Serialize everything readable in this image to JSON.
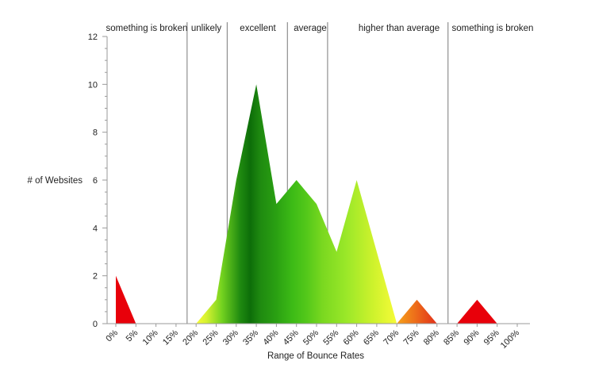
{
  "chart_data": {
    "type": "area",
    "title": "",
    "xlabel": "Range of Bounce Rates",
    "ylabel": "# of Websites",
    "ylim": [
      0,
      12
    ],
    "yticks": [
      0,
      2,
      4,
      6,
      8,
      10,
      12
    ],
    "categories": [
      "0%",
      "5%",
      "10%",
      "15%",
      "20%",
      "25%",
      "30%",
      "35%",
      "40%",
      "45%",
      "50%",
      "55%",
      "60%",
      "65%",
      "70%",
      "75%",
      "80%",
      "85%",
      "90%",
      "95%",
      "100%"
    ],
    "values": [
      2,
      0,
      0,
      0,
      0,
      1,
      6,
      10,
      5,
      6,
      5,
      3,
      6,
      3,
      0,
      1,
      0,
      0,
      1,
      0,
      0
    ],
    "region_labels": [
      "something is broken",
      "unlikely",
      "excellent",
      "average",
      "higher than average",
      "something is broken"
    ],
    "grid": false,
    "legend": "none",
    "colors": {
      "red": "#e8000a",
      "orange": "#f6a21a",
      "yellow": "#f1f52b",
      "lightgreen": "#9be829",
      "green": "#3fbf16",
      "darkgreen": "#0d6e09",
      "divider": "#8f8f8f",
      "axis": "#9a9a9a"
    }
  }
}
